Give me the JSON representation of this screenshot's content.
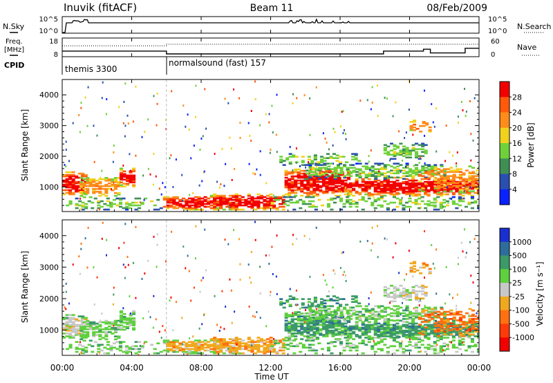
{
  "header": {
    "title": "Inuvik (fitACF)",
    "beam": "Beam 11",
    "date": "08/Feb/2009"
  },
  "nsky_panel": {
    "left_label": "N.Sky",
    "right_label": "N.Search",
    "left_ticks": [
      "10^5",
      "10^0"
    ],
    "right_ticks": [
      "10^5",
      "10^0"
    ]
  },
  "freq_panel": {
    "left_label_1": "Freq.",
    "left_label_2": "[MHz]",
    "right_label": "Nave",
    "left_ticks": [
      "18",
      "8"
    ],
    "right_ticks": [
      "60",
      "0"
    ]
  },
  "cpid": {
    "label": "CPID",
    "modes": [
      {
        "name": "themis 3300",
        "start_hour": 0
      },
      {
        "name": "normalsound (fast) 157",
        "start_hour": 6
      }
    ]
  },
  "time_axis": {
    "label": "Time UT",
    "ticks": [
      "00:00",
      "04:00",
      "08:00",
      "12:00",
      "16:00",
      "20:00",
      "00:00"
    ]
  },
  "range_axis": {
    "label": "Slant Range [km]",
    "ticks": [
      "1000",
      "2000",
      "3000",
      "4000"
    ]
  },
  "power_scale": {
    "label": "Power [dB]",
    "ticks": [
      "4",
      "8",
      "12",
      "16",
      "20",
      "24",
      "28"
    ],
    "colors": [
      "#0a22ff",
      "#2a4fb0",
      "#3f8f55",
      "#6fd13a",
      "#f0d21e",
      "#ff8c1a",
      "#ff5a0a",
      "#f20000"
    ]
  },
  "velocity_scale": {
    "label": "Velocity [m s⁻¹]",
    "ticks": [
      "1000",
      "500",
      "100",
      "25",
      "-25",
      "-100",
      "-500",
      "-1000"
    ],
    "colors": [
      "#1a2fd0",
      "#2e6d9a",
      "#3c9a68",
      "#5fd03e",
      "#c8c8c8",
      "#f0a81e",
      "#ff7010",
      "#ff3a0a",
      "#f20000"
    ]
  },
  "chart_data": {
    "type": "heatmap",
    "x_range_hours": [
      0,
      24
    ],
    "y_range_km": [
      200,
      4500
    ],
    "y_ticks_km": [
      1000,
      2000,
      3000,
      4000
    ],
    "echo_regions": [
      {
        "t": [
          0,
          1.3
        ],
        "r": [
          700,
          1500
        ],
        "power": "high",
        "velocity": "-25 to 100"
      },
      {
        "t": [
          1.0,
          3.3
        ],
        "r": [
          700,
          1300
        ],
        "power": "medium",
        "velocity": "25 to 100"
      },
      {
        "t": [
          3.3,
          4.2
        ],
        "r": [
          1000,
          1600
        ],
        "power": "high",
        "velocity": "100"
      },
      {
        "t": [
          6.0,
          10.2
        ],
        "r": [
          250,
          700
        ],
        "power": "high",
        "velocity": "-100 to 100"
      },
      {
        "t": [
          8.5,
          12.8
        ],
        "r": [
          250,
          700
        ],
        "power": "high",
        "velocity": "-100"
      },
      {
        "t": [
          12.8,
          24
        ],
        "r": [
          700,
          1600
        ],
        "power": "high",
        "velocity": "100 to 500"
      },
      {
        "t": [
          18.5,
          21.0
        ],
        "r": [
          1900,
          2400
        ],
        "power": "low",
        "velocity": "-25 to 25"
      },
      {
        "t": [
          20.5,
          24
        ],
        "r": [
          800,
          1700
        ],
        "power": "medium",
        "velocity": "-500 to -100"
      }
    ]
  }
}
